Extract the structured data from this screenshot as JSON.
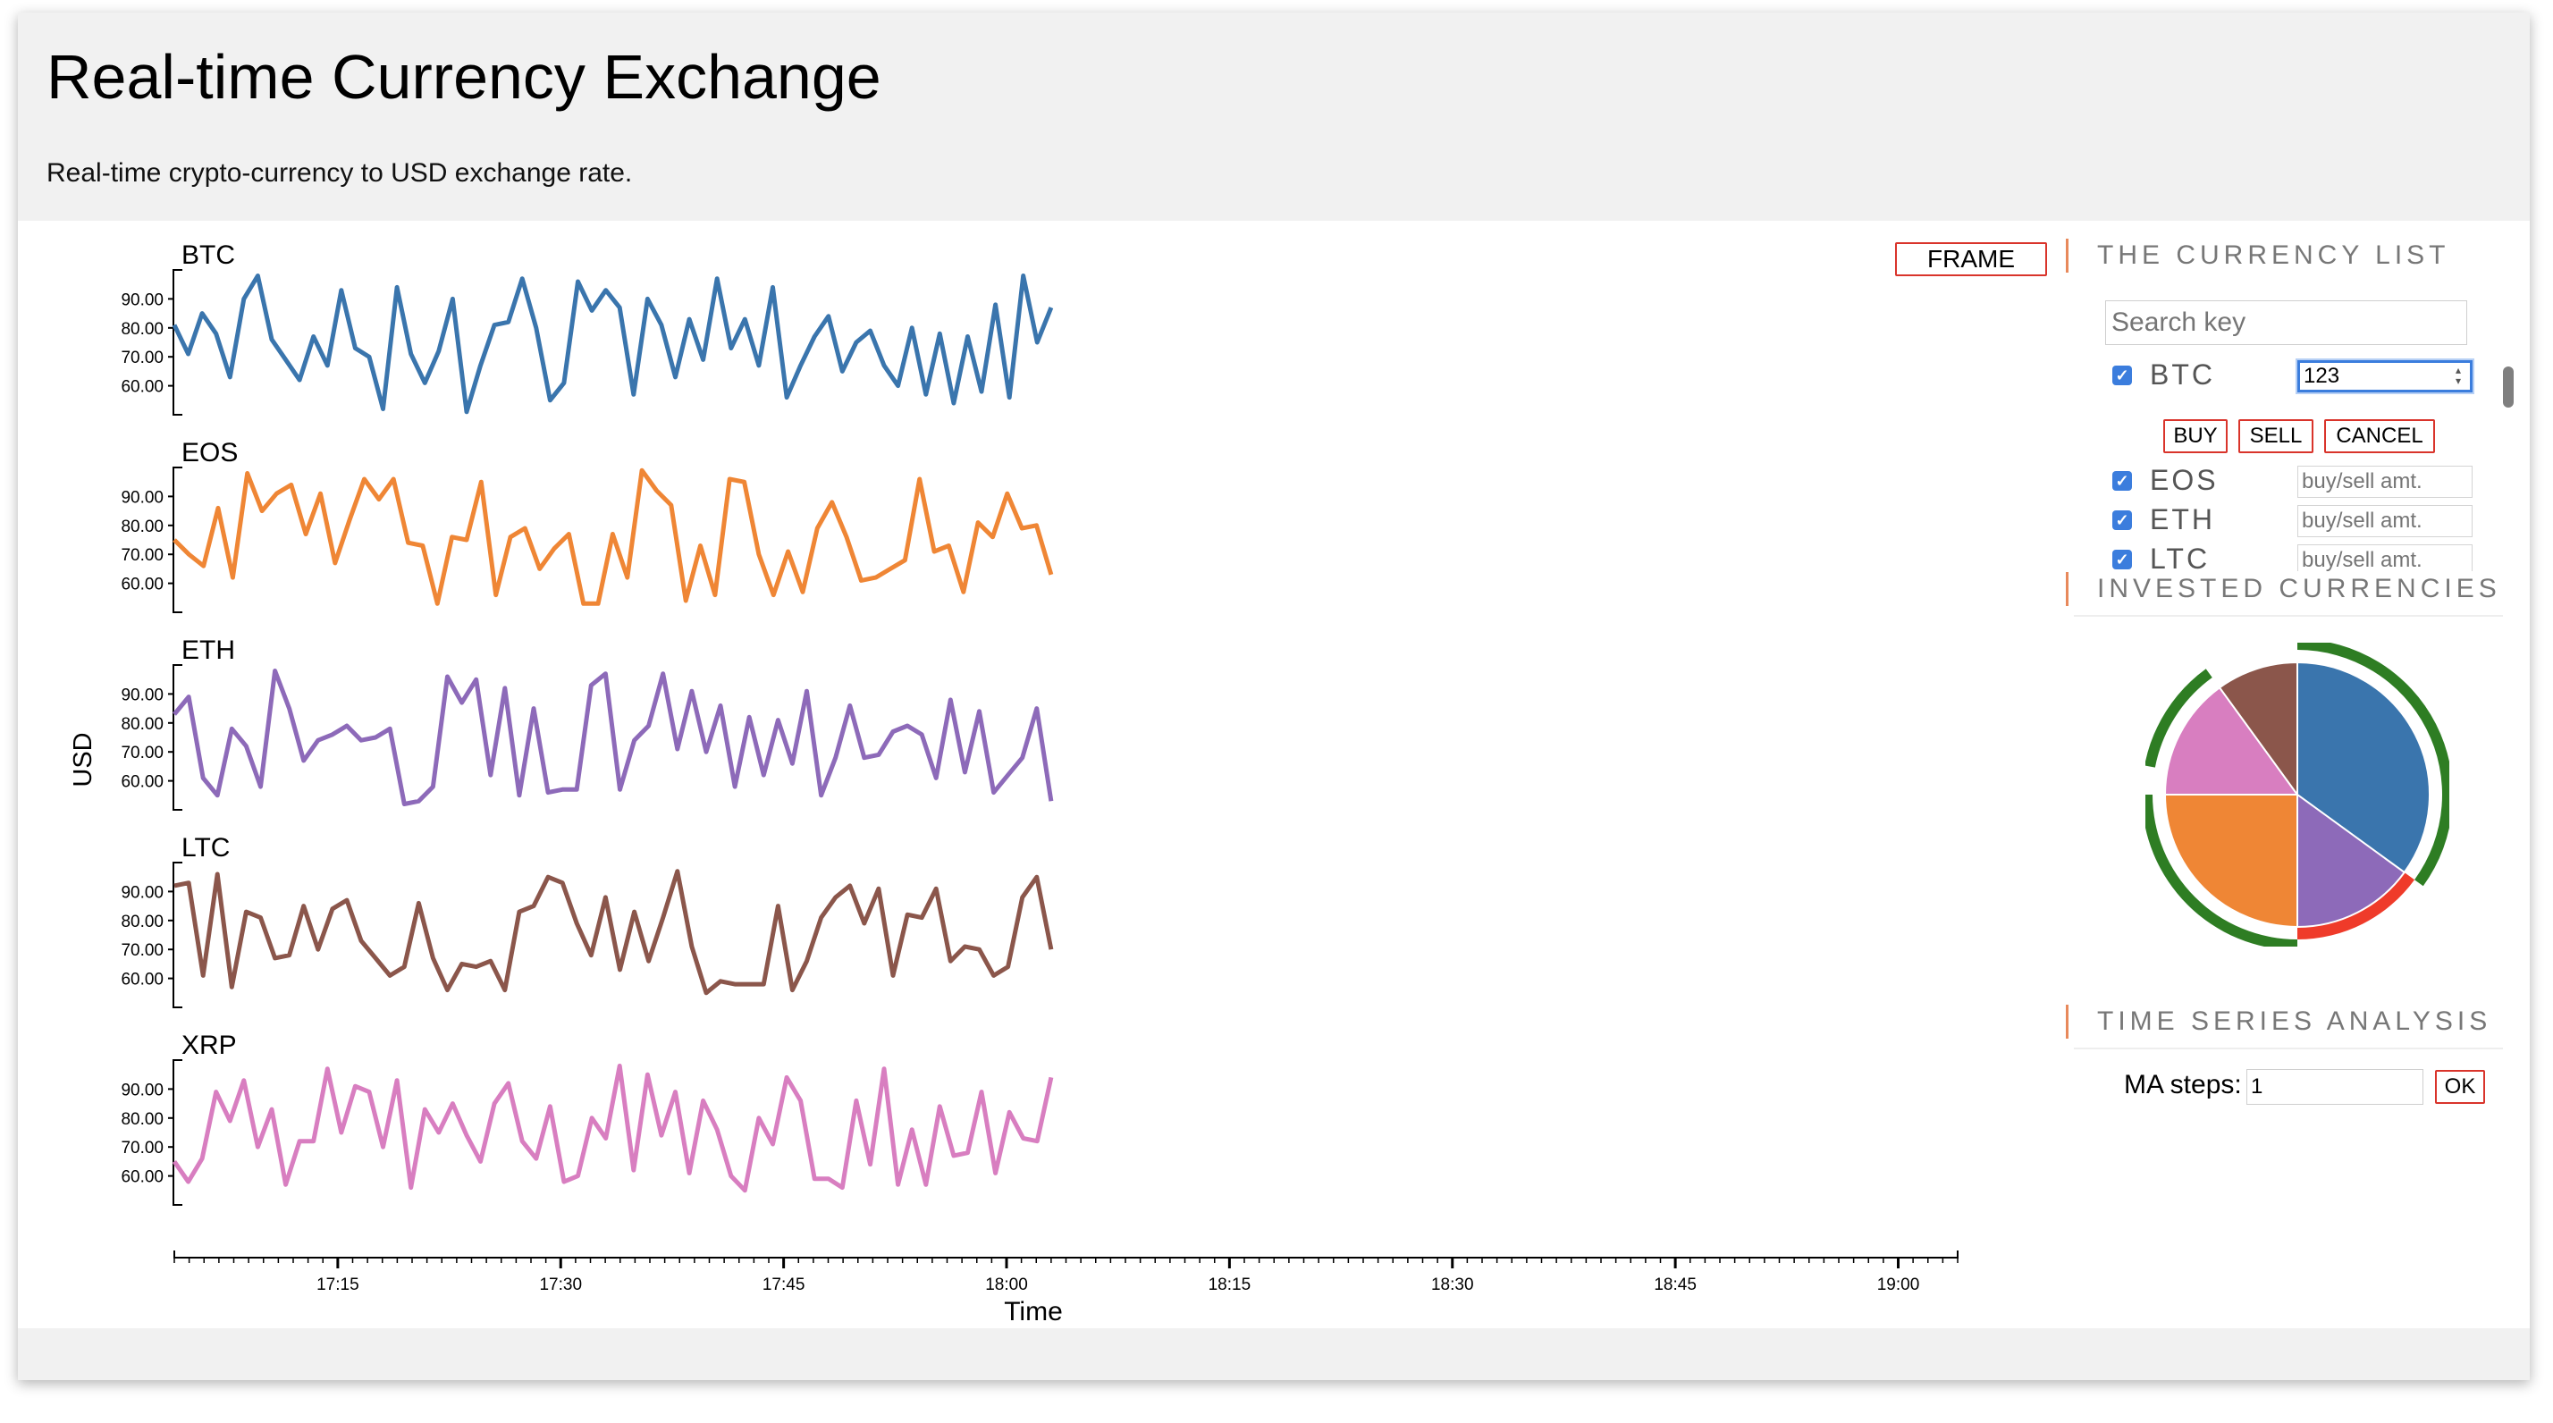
{
  "header": {
    "title": "Real-time Currency Exchange",
    "subtitle": "Real-time crypto-currency to USD exchange rate."
  },
  "frame_button_label": "FRAME",
  "currency_list": {
    "title": "THE CURRENCY LIST",
    "search_placeholder": "Search key",
    "items": [
      {
        "code": "BTC",
        "checked": true,
        "amount": "123",
        "placeholder": "buy/sell amt."
      },
      {
        "code": "EOS",
        "checked": true,
        "amount": "",
        "placeholder": "buy/sell amt."
      },
      {
        "code": "ETH",
        "checked": true,
        "amount": "",
        "placeholder": "buy/sell amt."
      },
      {
        "code": "LTC",
        "checked": true,
        "amount": "",
        "placeholder": "buy/sell amt."
      }
    ],
    "actions": {
      "buy": "BUY",
      "sell": "SELL",
      "cancel": "CANCEL"
    }
  },
  "invested": {
    "title": "INVESTED CURRENCIES"
  },
  "time_series": {
    "title": "TIME SERIES ANALYSIS",
    "ma_label": "MA steps:",
    "ma_value": "1",
    "ok_label": "OK"
  },
  "colors": {
    "BTC": "#3a75ad",
    "EOS": "#ef8635",
    "ETH": "#8d6ab9",
    "LTC": "#8b564b",
    "XRP": "#d87ec0",
    "accent": "#d9342b",
    "section_rule": "#e8895b"
  },
  "chart_data": [
    {
      "type": "line",
      "title": "",
      "xlabel": "Time",
      "ylabel": "USD",
      "grid": false,
      "xlim": [
        "17:04",
        "19:04"
      ],
      "x_ticks": [
        "17:15",
        "17:30",
        "17:45",
        "18:00",
        "18:15",
        "18:30",
        "18:45",
        "19:00"
      ],
      "y_ticks": [
        "60.00",
        "70.00",
        "80.00",
        "90.00"
      ],
      "ylim": [
        50,
        100
      ],
      "x_start": "17:04",
      "x_end": "18:03",
      "series": [
        {
          "name": "BTC",
          "values": [
            81,
            71,
            85,
            78,
            63,
            90,
            98,
            76,
            69,
            62,
            77,
            67,
            93,
            73,
            70,
            52,
            94,
            71,
            61,
            72,
            90,
            51,
            67,
            81,
            82,
            97,
            80,
            55,
            61,
            96,
            86,
            93,
            87,
            57,
            90,
            81,
            63,
            83,
            69,
            97,
            73,
            83,
            67,
            94,
            56,
            67,
            77,
            84,
            65,
            75,
            79,
            67,
            60,
            80,
            57,
            78,
            54,
            77,
            58,
            88,
            56,
            98,
            75,
            87
          ]
        },
        {
          "name": "EOS",
          "values": [
            75,
            70,
            66,
            86,
            62,
            98,
            85,
            91,
            94,
            77,
            91,
            67,
            82,
            96,
            89,
            96,
            74,
            73,
            53,
            76,
            75,
            95,
            56,
            76,
            79,
            65,
            72,
            77,
            53,
            53,
            77,
            62,
            99,
            92,
            87,
            54,
            73,
            56,
            96,
            95,
            70,
            56,
            71,
            57,
            79,
            88,
            76,
            61,
            62,
            65,
            68,
            96,
            71,
            73,
            57,
            81,
            76,
            91,
            79,
            80,
            63
          ]
        },
        {
          "name": "ETH",
          "values": [
            83,
            89,
            61,
            55,
            78,
            72,
            58,
            98,
            85,
            67,
            74,
            76,
            79,
            74,
            75,
            78,
            52,
            53,
            58,
            96,
            87,
            95,
            62,
            92,
            55,
            85,
            56,
            57,
            57,
            93,
            97,
            57,
            74,
            79,
            97,
            71,
            91,
            70,
            86,
            58,
            82,
            62,
            81,
            66,
            91,
            55,
            68,
            86,
            68,
            69,
            77,
            79,
            76,
            61,
            88,
            63,
            84,
            56,
            62,
            68,
            85,
            53
          ]
        },
        {
          "name": "LTC",
          "values": [
            92,
            93,
            61,
            96,
            57,
            83,
            81,
            67,
            68,
            85,
            70,
            84,
            87,
            73,
            67,
            61,
            64,
            86,
            67,
            56,
            65,
            64,
            66,
            56,
            83,
            85,
            95,
            93,
            79,
            68,
            88,
            63,
            83,
            66,
            81,
            97,
            71,
            55,
            59,
            58,
            58,
            58,
            85,
            56,
            66,
            81,
            88,
            92,
            79,
            91,
            61,
            82,
            81,
            91,
            66,
            71,
            70,
            61,
            64,
            88,
            95,
            70
          ]
        },
        {
          "name": "XRP",
          "values": [
            65,
            58,
            66,
            89,
            79,
            93,
            70,
            83,
            57,
            72,
            72,
            97,
            75,
            91,
            89,
            70,
            93,
            56,
            83,
            75,
            85,
            74,
            65,
            85,
            92,
            72,
            66,
            84,
            58,
            60,
            80,
            73,
            98,
            62,
            95,
            74,
            89,
            61,
            86,
            76,
            60,
            55,
            80,
            71,
            94,
            86,
            59,
            59,
            56,
            86,
            64,
            97,
            57,
            76,
            57,
            84,
            67,
            68,
            89,
            61,
            82,
            73,
            72,
            94
          ]
        }
      ]
    },
    {
      "type": "pie",
      "title": "INVESTED CURRENCIES",
      "slices": [
        {
          "label": "BTC",
          "value": 35
        },
        {
          "label": "ETH",
          "value": 15
        },
        {
          "label": "EOS",
          "value": 25
        },
        {
          "label": "XRP",
          "value": 15
        },
        {
          "label": "LTC",
          "value": 10
        }
      ],
      "outer_arcs": [
        {
          "color": "#2e7d23",
          "start_pct": 0,
          "end_pct": 35
        },
        {
          "color": "#ef3b2a",
          "start_pct": 35,
          "end_pct": 50
        },
        {
          "color": "#2e7d23",
          "start_pct": 50,
          "end_pct": 75
        },
        {
          "color": "#2e7d23",
          "start_pct": 78,
          "end_pct": 90
        }
      ]
    }
  ]
}
